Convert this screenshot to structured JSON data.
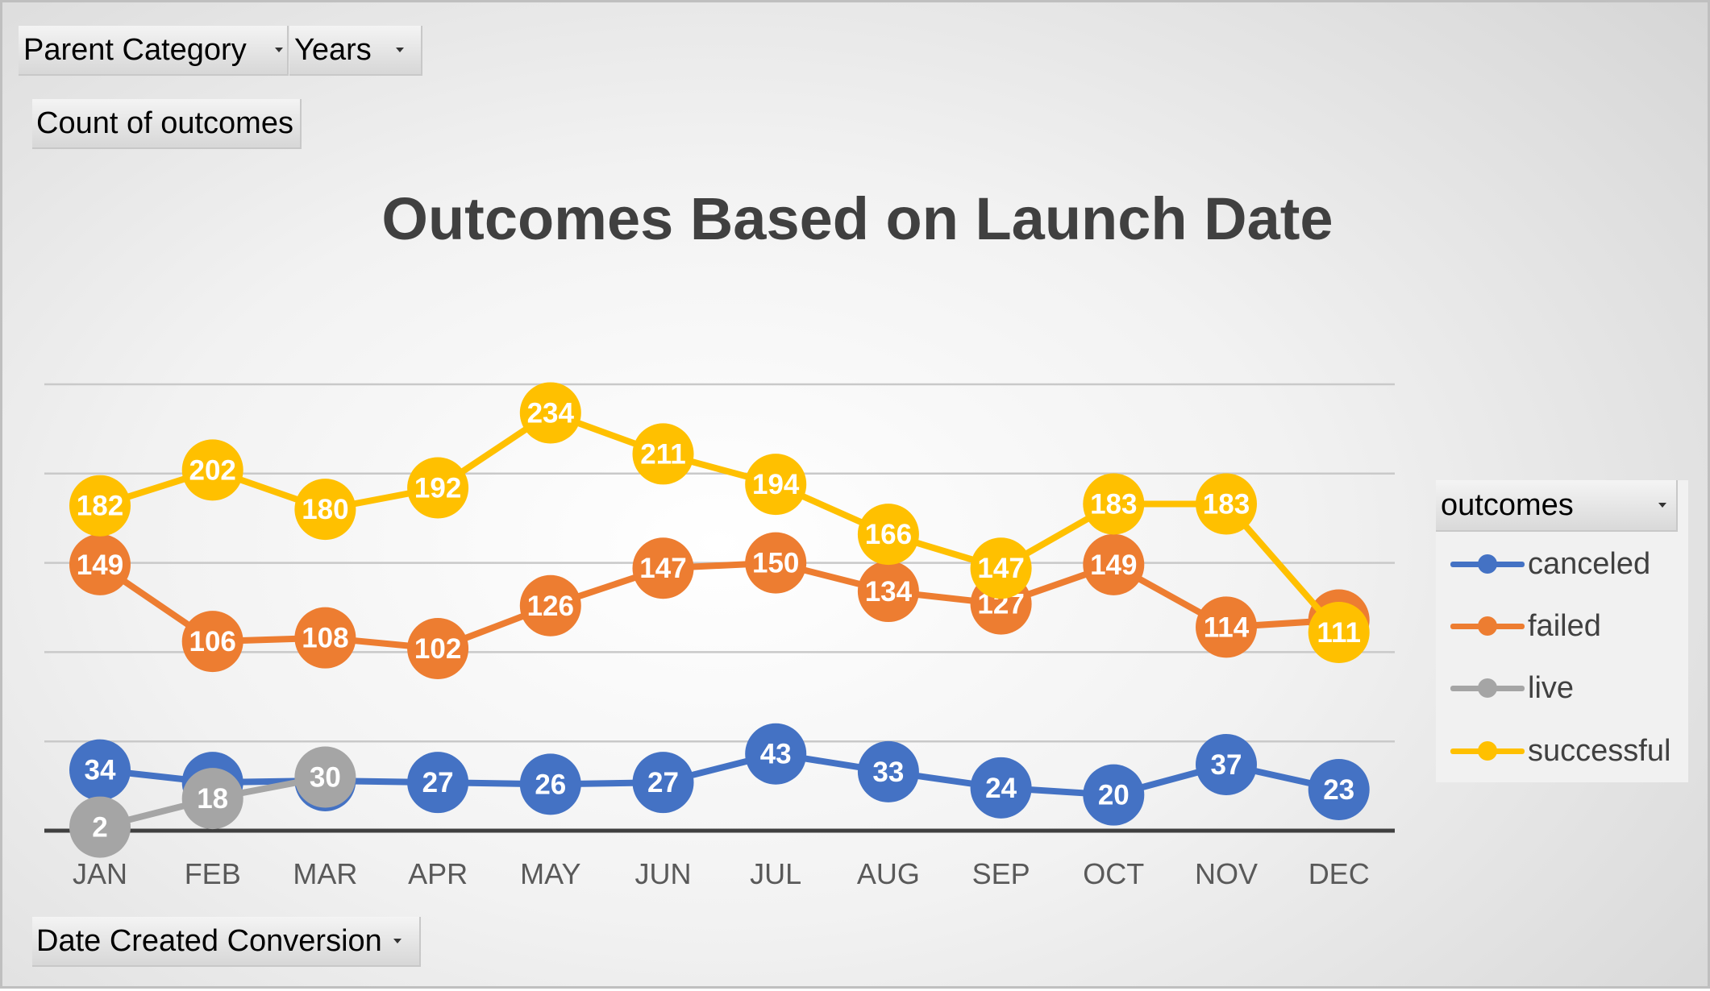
{
  "filters": {
    "parent_category": "Parent Category",
    "years": "Years",
    "values_field": "Count of outcomes",
    "axis_field": "Date Created Conversion"
  },
  "legend": {
    "header": "outcomes"
  },
  "colors": {
    "canceled": "#4472c4",
    "failed": "#ed7d31",
    "live": "#a5a5a5",
    "successful": "#ffc000",
    "gridline": "#d9d9d9",
    "axis": "#404040"
  },
  "chart_data": {
    "type": "line",
    "title": "Outcomes Based on Launch Date",
    "xlabel": "",
    "ylabel": "",
    "categories": [
      "JAN",
      "FEB",
      "MAR",
      "APR",
      "MAY",
      "JUN",
      "JUL",
      "AUG",
      "SEP",
      "OCT",
      "NOV",
      "DEC"
    ],
    "ylim": [
      0,
      250
    ],
    "grid": true,
    "legend_position": "right",
    "data_labels": true,
    "series": [
      {
        "name": "canceled",
        "values": [
          34,
          27,
          28,
          27,
          26,
          27,
          43,
          33,
          24,
          20,
          37,
          23
        ]
      },
      {
        "name": "failed",
        "values": [
          149,
          106,
          108,
          102,
          126,
          147,
          150,
          134,
          127,
          149,
          114,
          118
        ]
      },
      {
        "name": "live",
        "values": [
          2,
          18,
          30,
          null,
          null,
          null,
          null,
          null,
          null,
          null,
          null,
          null
        ]
      },
      {
        "name": "successful",
        "values": [
          182,
          202,
          180,
          192,
          234,
          211,
          194,
          166,
          147,
          183,
          183,
          111
        ]
      }
    ]
  }
}
